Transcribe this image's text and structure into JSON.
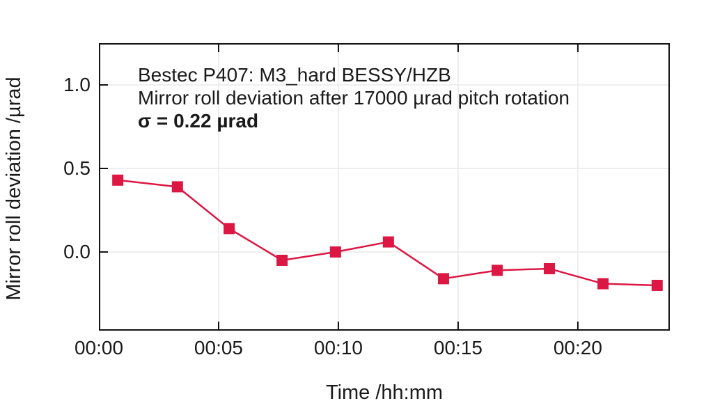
{
  "colors": {
    "background": "#ffffff",
    "frame": "#111111",
    "grid": "#e9e9e9",
    "text": "#1a1a1a",
    "series": "#dc1743"
  },
  "chart_data": {
    "type": "line",
    "title": "",
    "xlabel": "Time /hh:mm",
    "ylabel": "Mirror roll deviation /µrad",
    "annotation": [
      "Bestec P407: M3_hard BESSY/HZB",
      "Mirror roll deviation after 17000 µrad pitch rotation",
      "σ = 0.22 µrad"
    ],
    "xlim": [
      0,
      23.84
    ],
    "ylim": [
      -0.471,
      1.25
    ],
    "x_unit": "minutes",
    "grid": true,
    "legend": "none",
    "x_ticks": [
      {
        "value": 0,
        "label": "00:00"
      },
      {
        "value": 5,
        "label": "00:05"
      },
      {
        "value": 10,
        "label": "00:10"
      },
      {
        "value": 15,
        "label": "00:15"
      },
      {
        "value": 20,
        "label": "00:20"
      }
    ],
    "y_ticks": [
      {
        "value": 0.0,
        "label": "0.0"
      },
      {
        "value": 0.5,
        "label": "0.5"
      },
      {
        "value": 1.0,
        "label": "1.0"
      }
    ],
    "series": [
      {
        "name": "mirror-roll-deviation",
        "marker": "square",
        "color": "#dc1743",
        "points": [
          {
            "x_min": 0.79,
            "y": 0.43
          },
          {
            "x_min": 3.28,
            "y": 0.39
          },
          {
            "x_min": 5.44,
            "y": 0.14
          },
          {
            "x_min": 7.65,
            "y": -0.05
          },
          {
            "x_min": 9.88,
            "y": 0.0
          },
          {
            "x_min": 12.09,
            "y": 0.06
          },
          {
            "x_min": 14.39,
            "y": -0.16
          },
          {
            "x_min": 16.63,
            "y": -0.11
          },
          {
            "x_min": 18.81,
            "y": -0.1
          },
          {
            "x_min": 21.05,
            "y": -0.19
          },
          {
            "x_min": 23.31,
            "y": -0.2
          }
        ]
      }
    ]
  }
}
